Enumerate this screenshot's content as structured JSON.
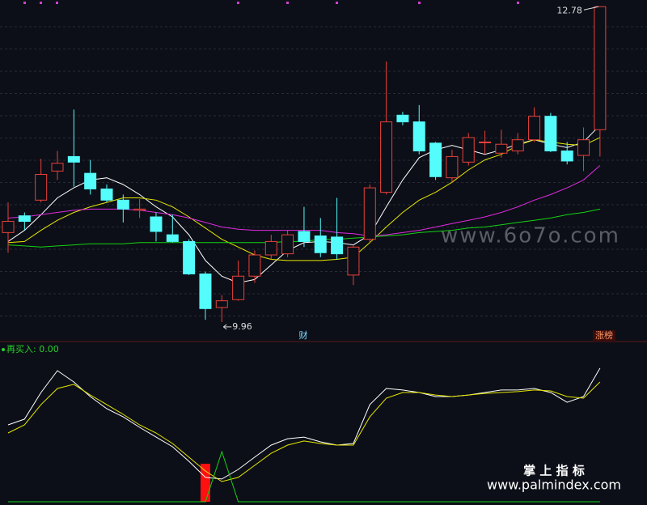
{
  "chart_data": [
    {
      "type": "candlestick",
      "open": [
        10.76,
        10.91,
        11.05,
        11.31,
        11.44,
        11.29,
        11.15,
        11.05,
        10.96,
        10.9,
        10.74,
        10.68,
        10.39,
        10.09,
        10.16,
        10.37,
        10.56,
        10.57,
        10.77,
        10.73,
        10.72,
        10.38,
        10.7,
        11.12,
        11.81,
        11.75,
        11.56,
        11.25,
        11.39,
        11.57,
        11.47,
        11.49,
        11.59,
        11.8,
        11.49,
        11.45,
        11.68
      ],
      "high": [
        11.03,
        10.94,
        11.42,
        11.49,
        11.86,
        11.41,
        11.19,
        11.1,
        11.06,
        10.94,
        10.92,
        10.7,
        10.41,
        10.2,
        10.51,
        10.6,
        10.74,
        10.78,
        10.99,
        10.89,
        11.07,
        10.65,
        11.19,
        12.29,
        11.84,
        11.9,
        11.57,
        11.5,
        11.65,
        11.67,
        11.68,
        11.65,
        11.88,
        11.83,
        11.57,
        11.7,
        12.78
      ],
      "low": [
        10.58,
        10.78,
        11.03,
        11.23,
        11.17,
        11.1,
        11.03,
        10.85,
        10.89,
        10.68,
        10.67,
        10.38,
        9.98,
        9.96,
        10.15,
        10.31,
        10.52,
        10.54,
        10.63,
        10.54,
        10.52,
        10.29,
        10.67,
        11.1,
        11.72,
        11.46,
        11.23,
        11.21,
        11.36,
        11.46,
        11.43,
        11.46,
        11.57,
        11.48,
        11.37,
        11.31,
        11.44
      ],
      "close": [
        10.86,
        10.86,
        11.28,
        11.38,
        11.39,
        11.15,
        11.05,
        10.97,
        10.97,
        10.77,
        10.68,
        10.39,
        10.08,
        10.15,
        10.37,
        10.56,
        10.68,
        10.74,
        10.68,
        10.58,
        10.57,
        10.63,
        11.16,
        11.75,
        11.75,
        11.49,
        11.26,
        11.44,
        11.61,
        11.57,
        11.55,
        11.59,
        11.8,
        11.49,
        11.4,
        11.59,
        12.78
      ],
      "up_color": "#e8413b",
      "down_color": "#54fcfc",
      "lines": [
        {
          "color": "#ffffff",
          "values": [
            10.68,
            10.78,
            10.92,
            11.07,
            11.16,
            11.23,
            11.25,
            11.19,
            11.1,
            10.99,
            10.9,
            10.74,
            10.51,
            10.37,
            10.31,
            10.34,
            10.47,
            10.6,
            10.67,
            10.68,
            10.67,
            10.65,
            10.74,
            10.99,
            11.23,
            11.43,
            11.5,
            11.54,
            11.5,
            11.46,
            11.5,
            11.55,
            11.59,
            11.55,
            11.52,
            11.57,
            11.72
          ]
        },
        {
          "color": "#e6e600",
          "values": [
            10.67,
            10.68,
            10.78,
            10.87,
            10.94,
            10.99,
            11.03,
            11.07,
            11.07,
            11.05,
            10.99,
            10.9,
            10.8,
            10.7,
            10.63,
            10.56,
            10.52,
            10.51,
            10.51,
            10.51,
            10.52,
            10.54,
            10.67,
            10.81,
            10.94,
            11.05,
            11.12,
            11.21,
            11.32,
            11.41,
            11.46,
            11.54,
            11.59,
            11.57,
            11.55,
            11.54,
            11.61
          ]
        },
        {
          "color": "#e02ae0",
          "values": [
            10.89,
            10.9,
            10.92,
            10.94,
            10.96,
            10.97,
            10.97,
            10.97,
            10.96,
            10.94,
            10.92,
            10.89,
            10.85,
            10.81,
            10.79,
            10.78,
            10.78,
            10.78,
            10.78,
            10.78,
            10.76,
            10.75,
            10.73,
            10.74,
            10.76,
            10.78,
            10.81,
            10.84,
            10.87,
            10.9,
            10.94,
            10.99,
            11.05,
            11.1,
            11.16,
            11.23,
            11.36
          ]
        },
        {
          "color": "#14d214",
          "values": [
            10.65,
            10.64,
            10.63,
            10.64,
            10.65,
            10.66,
            10.66,
            10.66,
            10.67,
            10.67,
            10.67,
            10.67,
            10.67,
            10.67,
            10.67,
            10.67,
            10.67,
            10.68,
            10.68,
            10.7,
            10.7,
            10.71,
            10.72,
            10.73,
            10.74,
            10.76,
            10.77,
            10.78,
            10.8,
            10.81,
            10.83,
            10.85,
            10.87,
            10.89,
            10.92,
            10.94,
            10.97
          ]
        }
      ],
      "ylim": [
        9.8,
        12.84
      ],
      "max_label": "12.78",
      "min_label": "9.96",
      "annotations": [
        "财",
        "涨榜"
      ]
    },
    {
      "type": "indicator",
      "title": "再买入: 0.00",
      "lines": [
        {
          "color": "#ffffff",
          "values": [
            52.8,
            56.7,
            75,
            90,
            82.2,
            72.2,
            63.9,
            58.3,
            51.1,
            44.4,
            37.8,
            27.8,
            16.7,
            15.6,
            22.2,
            30.6,
            38.9,
            43.3,
            44.4,
            41.1,
            38.9,
            40,
            66.7,
            77.8,
            76.7,
            75,
            72.2,
            72.2,
            73.3,
            75,
            76.7,
            76.7,
            77.8,
            75,
            68.3,
            72.2,
            91.7
          ]
        },
        {
          "color": "#e6e600",
          "values": [
            47.2,
            52.8,
            66.7,
            77.8,
            80.6,
            73.3,
            66.7,
            60,
            52.8,
            47.2,
            40,
            30.6,
            21.1,
            13.9,
            16.7,
            25,
            33.3,
            38.9,
            41.7,
            40,
            38.9,
            38.9,
            58.3,
            71.1,
            75,
            75,
            73.3,
            72.2,
            73.3,
            74.4,
            75,
            75.6,
            76.7,
            76.1,
            72.2,
            71.1,
            82.2
          ]
        },
        {
          "color": "#14d214",
          "values": [
            0,
            0,
            0,
            0,
            0,
            0,
            0,
            0,
            0,
            0,
            0,
            0,
            0,
            34.4,
            0,
            0,
            0,
            0,
            0,
            0,
            0,
            0,
            0,
            0,
            0,
            0,
            0,
            0,
            0,
            0,
            0,
            0,
            0,
            0,
            0,
            0,
            0
          ]
        }
      ],
      "bars": {
        "color": "#ff1010",
        "values": [
          null,
          null,
          null,
          null,
          null,
          null,
          null,
          null,
          null,
          null,
          null,
          null,
          26.1,
          null,
          null,
          null,
          null,
          null,
          null,
          null,
          null,
          null,
          null,
          null,
          null,
          null,
          null,
          null,
          null,
          null,
          null,
          null,
          null,
          null,
          null,
          null,
          null
        ]
      },
      "ylim": [
        0,
        100
      ]
    },
    {
      "type": "watermark",
      "texts": [
        "www.6o7o.com",
        "掌 上 指 标",
        "www.palmindex.com"
      ]
    }
  ]
}
